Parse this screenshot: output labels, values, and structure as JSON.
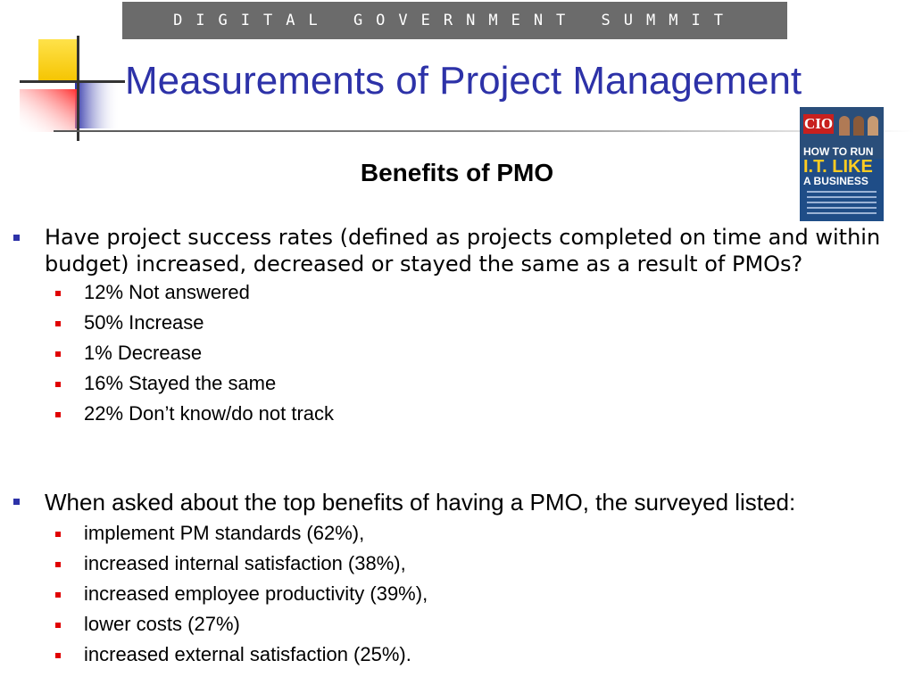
{
  "banner": {
    "text": "DIGITAL GOVERNMENT SUMMIT"
  },
  "slide": {
    "title": "Measurements of Project Management",
    "subtitle": "Benefits of PMO"
  },
  "magazine": {
    "brand": "CIO",
    "headline_1": "HOW TO RUN",
    "headline_2": "I.T. LIKE",
    "headline_3": "A BUSINESS"
  },
  "question_1": {
    "text": "Have project success rates (defined as projects completed on time and within budget) increased, decreased or stayed the same as a result of PMOs?",
    "items": [
      "12% Not answered",
      "50% Increase",
      "1% Decrease",
      "16% Stayed the same",
      "22% Don’t know/do not track"
    ]
  },
  "question_2": {
    "text": "When asked about the top benefits of having a PMO, the surveyed listed:",
    "items": [
      "implement PM standards (62%),",
      "increased internal satisfaction (38%),",
      "increased employee productivity (39%),",
      "lower costs (27%)",
      "increased external satisfaction (25%)."
    ]
  },
  "colors": {
    "title": "#2d32a8",
    "level1_bullet": "#2d32a8",
    "level2_bullet": "#e00000",
    "banner": "#6b6b6b"
  }
}
